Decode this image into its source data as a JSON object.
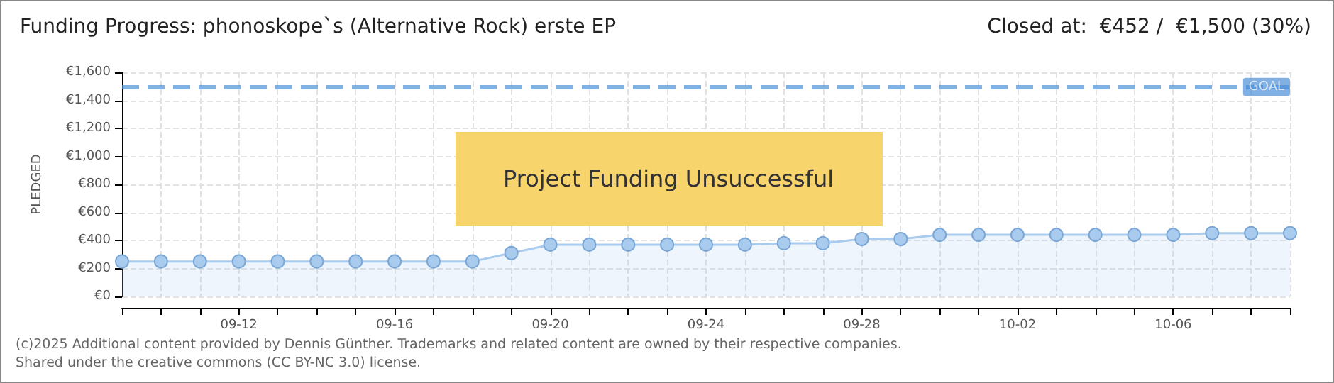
{
  "chart_data": {
    "type": "area",
    "title": "Funding Progress: phonoskope`s (Alternative Rock) erste EP",
    "subtitle": "Closed at:  €452 /  €1,500 (30%)",
    "ylabel": "PLEDGED",
    "categories": [
      null,
      null,
      null,
      "09-12",
      null,
      null,
      null,
      "09-16",
      null,
      null,
      null,
      "09-20",
      null,
      null,
      null,
      "09-24",
      null,
      null,
      null,
      "09-28",
      null,
      null,
      null,
      "10-02",
      null,
      null,
      null,
      "10-06",
      null,
      null,
      null
    ],
    "series": [
      {
        "color": "#a9cbee",
        "values": [
          250,
          250,
          250,
          250,
          250,
          250,
          250,
          250,
          250,
          250,
          310,
          370,
          370,
          370,
          370,
          370,
          370,
          380,
          380,
          410,
          410,
          440,
          440,
          440,
          440,
          440,
          440,
          440,
          452,
          452,
          452
        ]
      }
    ],
    "ylim": [
      0,
      1600
    ],
    "yticks": [
      {
        "value": 0,
        "label": "€0"
      },
      {
        "value": 200,
        "label": "€200"
      },
      {
        "value": 400,
        "label": "€400"
      },
      {
        "value": 600,
        "label": "€600"
      },
      {
        "value": 800,
        "label": "€800"
      },
      {
        "value": 1000,
        "label": "€1,000"
      },
      {
        "value": 1200,
        "label": "€1,200"
      },
      {
        "value": 1400,
        "label": "€1,400"
      },
      {
        "value": 1600,
        "label": "€1,600"
      }
    ],
    "ref_lines": [
      {
        "axis": "y",
        "value": 1500,
        "label": "GOAL",
        "color": "#4a8fd8",
        "line_style": "dashed"
      }
    ],
    "annotations": [
      "Project Funding Unsuccessful",
      "(c)2025 Additional content provided by Dennis Günther. Trademarks and related content are owned by their respective companies.",
      "Shared under the creative commons (CC BY-NC 3.0) license."
    ],
    "grid": true,
    "marker": "circle",
    "line_style": "solid"
  }
}
